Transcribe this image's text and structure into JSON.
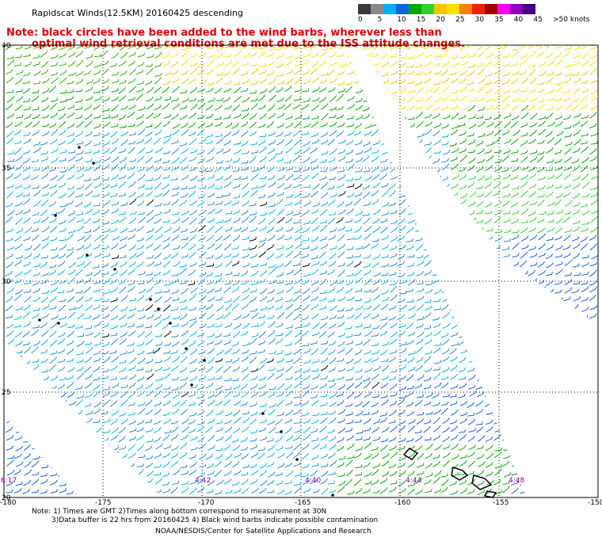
{
  "title": "Rapidscat Winds(12.5KM) 20160425 descending",
  "note_line1": "Note: black circles have been added to the wind barbs, wherever less than",
  "note_line2": "optimal wind retrieval conditions are met due to the ISS attitude changes.",
  "legend": {
    "labels": [
      "0",
      "5",
      "10",
      "15",
      "20",
      "25",
      "30",
      "35",
      "40",
      "45",
      ">50 knots"
    ],
    "colors": [
      "#3a3a3a",
      "#8a8a8a",
      "#00b0f0",
      "#1060e0",
      "#00a800",
      "#30d030",
      "#f0c800",
      "#ffe000",
      "#ff8000",
      "#f02000",
      "#a00000",
      "#ff00ff",
      "#9000c0",
      "#400080"
    ]
  },
  "axes": {
    "lat_labels": [
      "40",
      "35",
      "30",
      "25",
      "20"
    ],
    "lon_labels": [
      "-180",
      "-175",
      "-170",
      "-165",
      "-160",
      "-155",
      "-150"
    ]
  },
  "times": [
    "6:17",
    "4:42",
    "4:40",
    "4:44",
    "4:48"
  ],
  "footer": {
    "line1": "Note: 1) Times are GMT 2)Times along bottom correspond to measurement at 30N",
    "line2": "3)Data buffer is 22 hrs from 20160425 4) Black wind barbs indicate possible contamination",
    "line3": "NOAA/NESDIS/Center for Satellite Applications and Research"
  }
}
